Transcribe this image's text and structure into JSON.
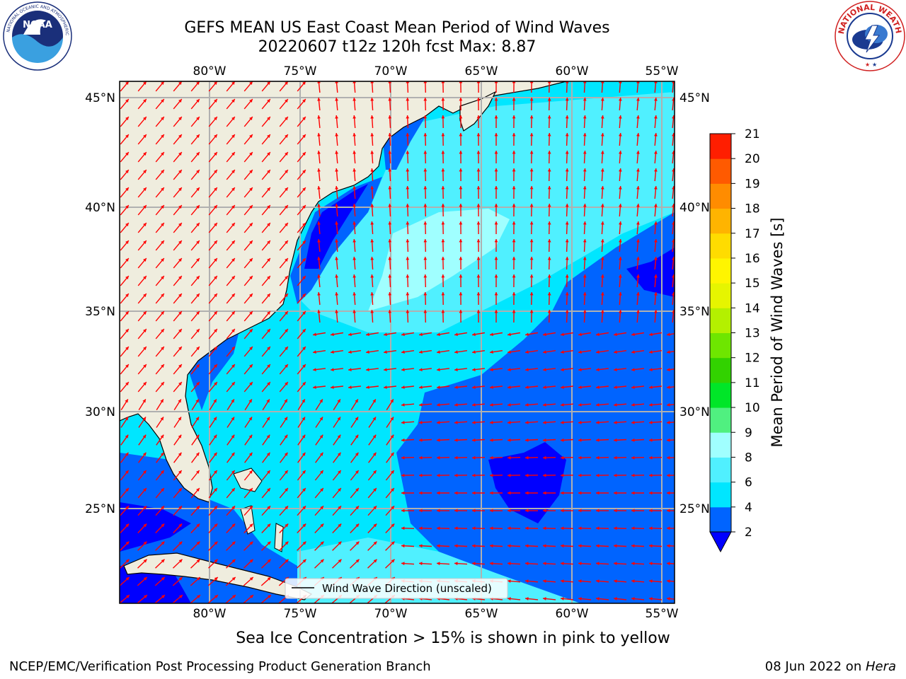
{
  "title": {
    "line1": "GEFS MEAN US East Coast Mean Period of Wind Waves",
    "line2": "20220607 t12z 120h fcst   Max: 8.87"
  },
  "logos": {
    "left": "noaa-logo",
    "right": "nws-logo",
    "left_text": "NOAA",
    "right_text": "NATIONAL WEATHER SERVICE"
  },
  "map": {
    "lon_labels": [
      "80°W",
      "75°W",
      "70°W",
      "65°W",
      "60°W",
      "55°W"
    ],
    "lat_labels": [
      "45°N",
      "40°N",
      "35°N",
      "30°N",
      "25°N"
    ],
    "lon_range": [
      -85,
      -54.6
    ],
    "lat_range": [
      20,
      46
    ],
    "grid": true,
    "colors": {
      "land": "#efedde",
      "grid": "#b0b0b0",
      "arrow": "#ff0000",
      "coast": "#000000"
    }
  },
  "legend": {
    "label": "Wind Wave Direction (unscaled)"
  },
  "colorbar": {
    "title": "Mean Period of Wind Waves [s]",
    "ticks": [
      "2",
      "4",
      "6",
      "8",
      "9",
      "10",
      "11",
      "12",
      "13",
      "14",
      "15",
      "16",
      "17",
      "18",
      "19",
      "20",
      "21"
    ],
    "colors": [
      "#0064ff",
      "#00e6ff",
      "#50f0ff",
      "#a0ffff",
      "#50f080",
      "#00e628",
      "#32d200",
      "#6ee600",
      "#b4f000",
      "#e6f500",
      "#fff500",
      "#ffdc00",
      "#ffb400",
      "#ff8c00",
      "#ff5a00",
      "#ff1e00"
    ],
    "under_color": "#0000ff"
  },
  "caption": "Sea Ice Concentration > 15% is shown in pink to yellow",
  "footer": {
    "left": "NCEP/EMC/Verification Post Processing Product Generation Branch",
    "right_date": "08 Jun 2022 on ",
    "right_host": "Hera"
  },
  "field": {
    "max_period": 8.87
  }
}
